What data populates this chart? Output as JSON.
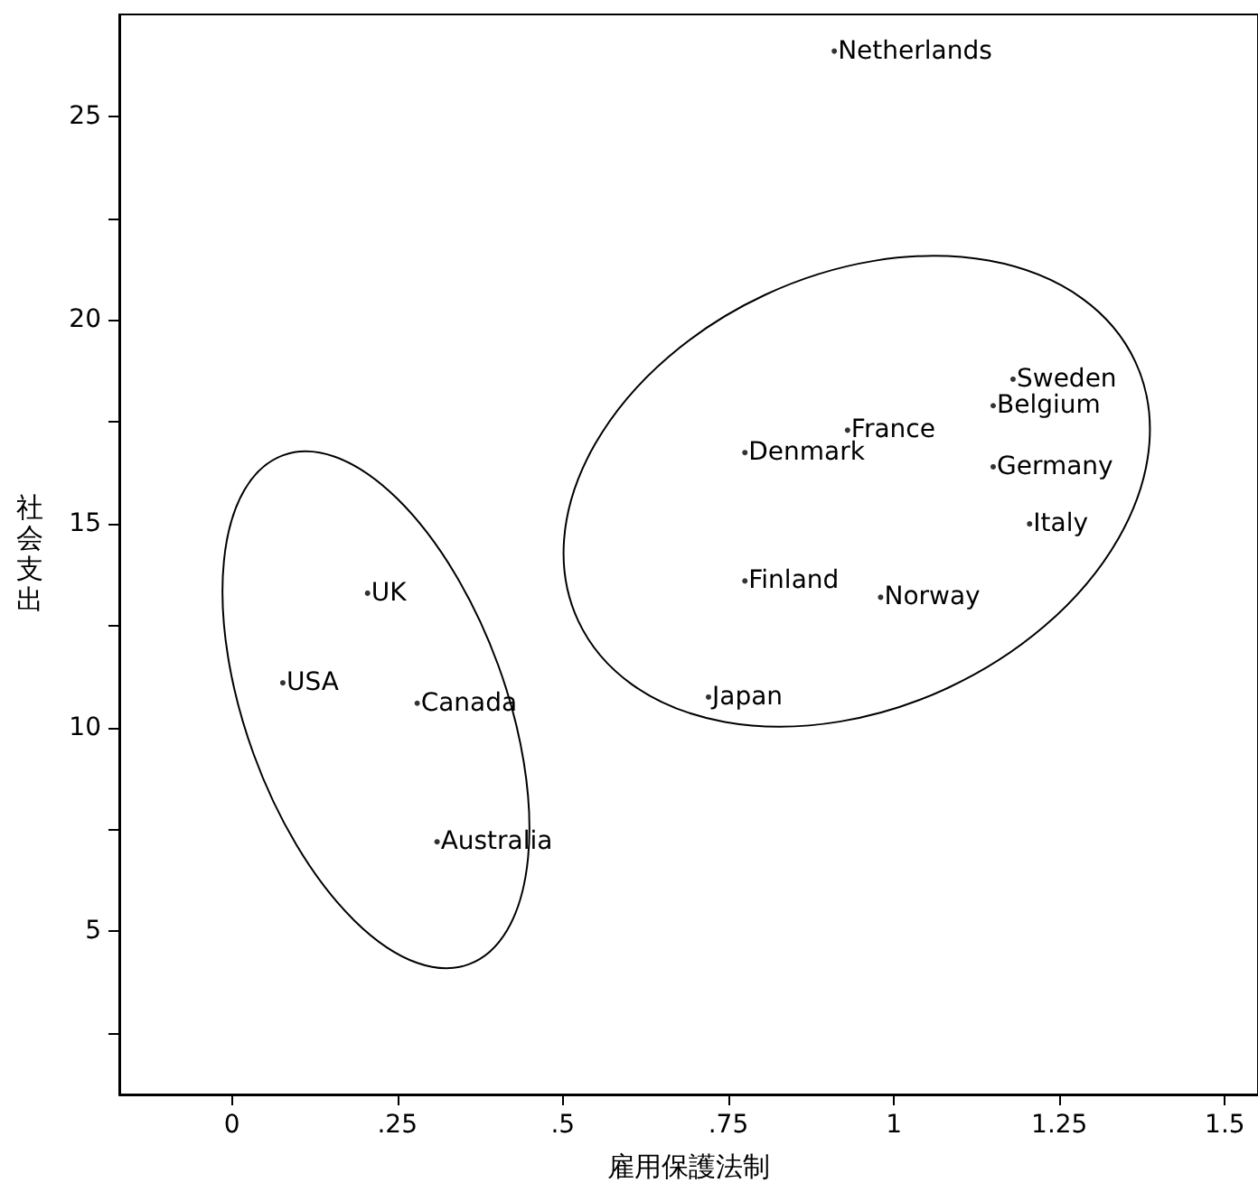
{
  "chart_data": {
    "type": "scatter",
    "xlabel": "雇用保護法制",
    "ylabel": "社会支出",
    "x": [
      0.91,
      1.18,
      1.15,
      0.93,
      0.775,
      1.15,
      1.205,
      0.775,
      0.98,
      0.72,
      0.205,
      0.077,
      0.28,
      0.31
    ],
    "series": [
      {
        "color": "#000000",
        "values": [
          26.6,
          18.55,
          17.9,
          17.3,
          16.75,
          16.4,
          15.0,
          13.6,
          13.2,
          10.75,
          13.3,
          11.1,
          10.6,
          7.2
        ]
      }
    ],
    "annotations": [
      {
        "text": "Netherlands",
        "x": 0.91,
        "y": 26.6
      },
      {
        "text": "Sweden",
        "x": 1.18,
        "y": 18.55
      },
      {
        "text": "Belgium",
        "x": 1.15,
        "y": 17.9
      },
      {
        "text": "France",
        "x": 0.93,
        "y": 17.3
      },
      {
        "text": "Denmark",
        "x": 0.775,
        "y": 16.75
      },
      {
        "text": "Germany",
        "x": 1.15,
        "y": 16.4
      },
      {
        "text": "Italy",
        "x": 1.205,
        "y": 15.0
      },
      {
        "text": "Finland",
        "x": 0.775,
        "y": 13.6
      },
      {
        "text": "Norway",
        "x": 0.98,
        "y": 13.2
      },
      {
        "text": "Japan",
        "x": 0.72,
        "y": 10.75
      },
      {
        "text": "UK",
        "x": 0.205,
        "y": 13.3
      },
      {
        "text": "USA",
        "x": 0.077,
        "y": 11.1
      },
      {
        "text": "Canada",
        "x": 0.28,
        "y": 10.6
      },
      {
        "text": "Australia",
        "x": 0.31,
        "y": 7.2
      }
    ],
    "xlim": [
      -0.17,
      1.55
    ],
    "xticks": [
      0,
      {
        "value": 0.25,
        "label": ".25"
      },
      {
        "value": 0.5,
        "label": ".5"
      },
      {
        "value": 0.75,
        "label": ".75"
      },
      1,
      1.25,
      1.5
    ],
    "ylim": [
      1,
      27.5
    ],
    "yticks": [
      {
        "value": 2.5,
        "label": null
      },
      5,
      {
        "value": 7.5,
        "label": null
      },
      10,
      {
        "value": 12.5,
        "label": null
      },
      15,
      {
        "value": 17.5,
        "label": null
      },
      20,
      {
        "value": 22.5,
        "label": null
      },
      25
    ],
    "marker": "circle"
  }
}
